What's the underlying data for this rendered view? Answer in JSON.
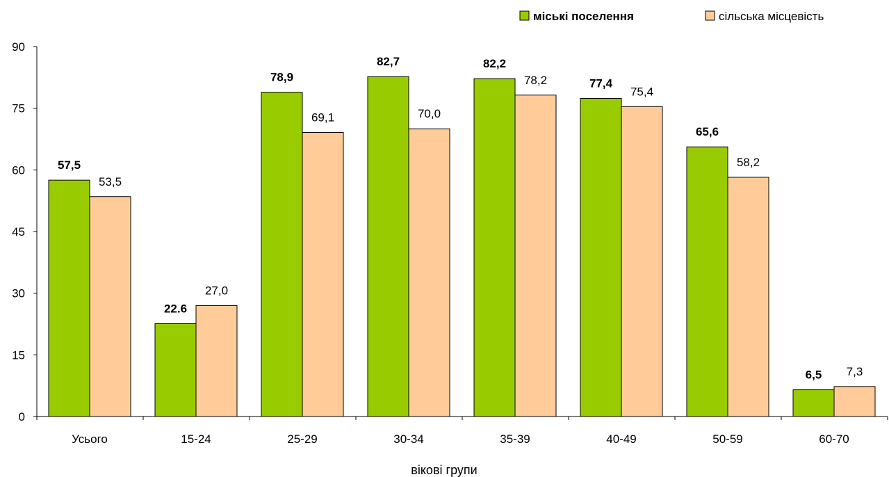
{
  "chart_data": {
    "type": "bar",
    "title": "",
    "xlabel": "вікові групи",
    "ylabel": "",
    "categories": [
      "Усього",
      "15-24",
      "25-29",
      "30-34",
      "35-39",
      "40-49",
      "50-59",
      "60-70"
    ],
    "ylim": [
      0,
      90
    ],
    "yticks": [
      "0",
      "15",
      "30",
      "45",
      "60",
      "75",
      "90"
    ],
    "grid": false,
    "legend_position": "top-right",
    "series": [
      {
        "name": "міські поселення",
        "color": "#99CC00",
        "label_bold": true,
        "values": [
          57.5,
          22.6,
          78.9,
          82.7,
          82.2,
          77.4,
          65.6,
          6.5
        ],
        "labels": [
          "57,5",
          "22.6",
          "78,9",
          "82,7",
          "82,2",
          "77,4",
          "65,6",
          "6,5"
        ]
      },
      {
        "name": "сільська місцевість",
        "color": "#FFCC99",
        "label_bold": false,
        "values": [
          53.5,
          27.0,
          69.1,
          70.0,
          78.2,
          75.4,
          58.2,
          7.3
        ],
        "labels": [
          "53,5",
          "27,0",
          "69,1",
          "70,0",
          "78,2",
          "75,4",
          "58,2",
          "7,3"
        ]
      }
    ]
  }
}
